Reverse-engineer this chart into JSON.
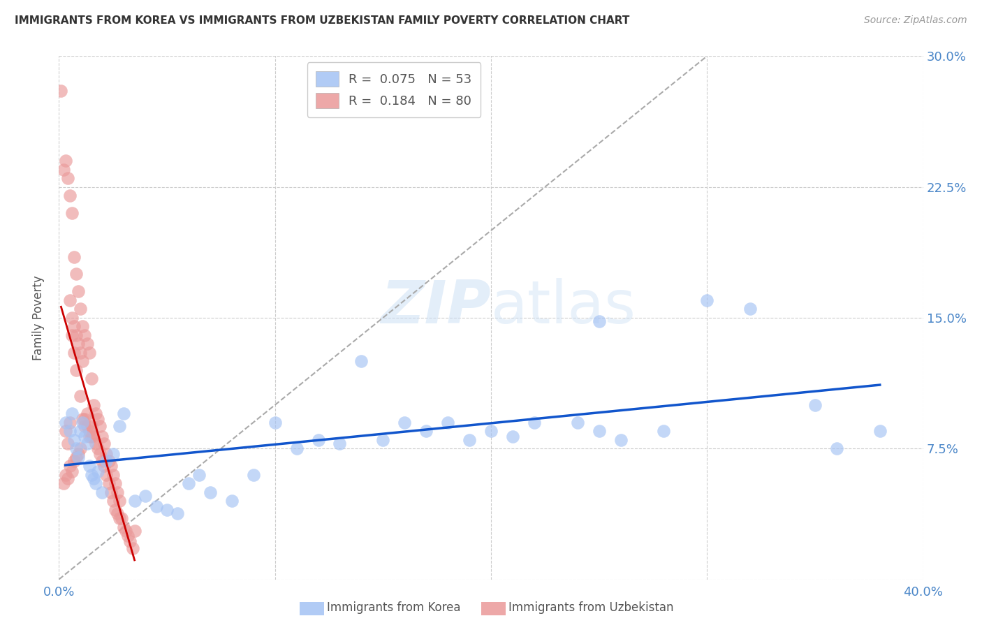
{
  "title": "IMMIGRANTS FROM KOREA VS IMMIGRANTS FROM UZBEKISTAN FAMILY POVERTY CORRELATION CHART",
  "source": "Source: ZipAtlas.com",
  "xlabel_blue": "Immigrants from Korea",
  "xlabel_pink": "Immigrants from Uzbekistan",
  "ylabel": "Family Poverty",
  "xlim": [
    0.0,
    0.4
  ],
  "ylim": [
    0.0,
    0.3
  ],
  "xtick_positions": [
    0.0,
    0.1,
    0.2,
    0.3,
    0.4
  ],
  "xtick_labels": [
    "0.0%",
    "",
    "",
    "",
    "40.0%"
  ],
  "ytick_positions": [
    0.0,
    0.075,
    0.15,
    0.225,
    0.3
  ],
  "ytick_labels_right": [
    "",
    "7.5%",
    "15.0%",
    "22.5%",
    "30.0%"
  ],
  "legend_blue_R": "0.075",
  "legend_blue_N": "53",
  "legend_pink_R": "0.184",
  "legend_pink_N": "80",
  "watermark_zip": "ZIP",
  "watermark_atlas": "atlas",
  "blue_color": "#a4c2f4",
  "pink_color": "#ea9999",
  "trend_blue_color": "#1155cc",
  "trend_pink_color": "#cc0000",
  "diagonal_color": "#aaaaaa",
  "korea_x": [
    0.003,
    0.005,
    0.006,
    0.007,
    0.008,
    0.009,
    0.01,
    0.011,
    0.012,
    0.013,
    0.014,
    0.015,
    0.016,
    0.017,
    0.018,
    0.02,
    0.022,
    0.025,
    0.028,
    0.03,
    0.035,
    0.04,
    0.045,
    0.05,
    0.055,
    0.06,
    0.065,
    0.07,
    0.08,
    0.09,
    0.1,
    0.11,
    0.12,
    0.13,
    0.14,
    0.15,
    0.16,
    0.17,
    0.18,
    0.19,
    0.2,
    0.21,
    0.22,
    0.24,
    0.25,
    0.26,
    0.28,
    0.3,
    0.32,
    0.35,
    0.36,
    0.38,
    0.25
  ],
  "korea_y": [
    0.09,
    0.085,
    0.095,
    0.08,
    0.075,
    0.07,
    0.085,
    0.09,
    0.082,
    0.078,
    0.065,
    0.06,
    0.058,
    0.055,
    0.062,
    0.05,
    0.068,
    0.072,
    0.088,
    0.095,
    0.045,
    0.048,
    0.042,
    0.04,
    0.038,
    0.055,
    0.06,
    0.05,
    0.045,
    0.06,
    0.09,
    0.075,
    0.08,
    0.078,
    0.125,
    0.08,
    0.09,
    0.085,
    0.09,
    0.08,
    0.085,
    0.082,
    0.09,
    0.09,
    0.085,
    0.08,
    0.085,
    0.16,
    0.155,
    0.1,
    0.075,
    0.085,
    0.148
  ],
  "uzbek_x": [
    0.001,
    0.002,
    0.003,
    0.003,
    0.004,
    0.004,
    0.005,
    0.005,
    0.006,
    0.006,
    0.007,
    0.007,
    0.008,
    0.008,
    0.009,
    0.01,
    0.01,
    0.011,
    0.011,
    0.012,
    0.012,
    0.013,
    0.013,
    0.014,
    0.014,
    0.015,
    0.015,
    0.016,
    0.016,
    0.017,
    0.017,
    0.018,
    0.018,
    0.019,
    0.019,
    0.02,
    0.02,
    0.021,
    0.021,
    0.022,
    0.022,
    0.023,
    0.023,
    0.024,
    0.024,
    0.025,
    0.025,
    0.026,
    0.026,
    0.027,
    0.027,
    0.028,
    0.028,
    0.029,
    0.03,
    0.031,
    0.032,
    0.033,
    0.034,
    0.035,
    0.005,
    0.006,
    0.007,
    0.008,
    0.009,
    0.01,
    0.011,
    0.012,
    0.013,
    0.014,
    0.015,
    0.003,
    0.004,
    0.002,
    0.005,
    0.007,
    0.009,
    0.006,
    0.008,
    0.01
  ],
  "uzbek_y": [
    0.28,
    0.235,
    0.24,
    0.085,
    0.23,
    0.078,
    0.22,
    0.09,
    0.21,
    0.14,
    0.185,
    0.13,
    0.175,
    0.12,
    0.165,
    0.155,
    0.105,
    0.145,
    0.092,
    0.14,
    0.088,
    0.135,
    0.095,
    0.13,
    0.082,
    0.115,
    0.088,
    0.1,
    0.082,
    0.095,
    0.078,
    0.092,
    0.075,
    0.088,
    0.072,
    0.082,
    0.068,
    0.078,
    0.065,
    0.072,
    0.06,
    0.068,
    0.055,
    0.065,
    0.05,
    0.06,
    0.045,
    0.055,
    0.04,
    0.05,
    0.038,
    0.045,
    0.035,
    0.035,
    0.03,
    0.028,
    0.025,
    0.022,
    0.018,
    0.028,
    0.16,
    0.15,
    0.145,
    0.14,
    0.135,
    0.13,
    0.125,
    0.092,
    0.088,
    0.085,
    0.082,
    0.06,
    0.058,
    0.055,
    0.065,
    0.068,
    0.072,
    0.062,
    0.07,
    0.075
  ]
}
